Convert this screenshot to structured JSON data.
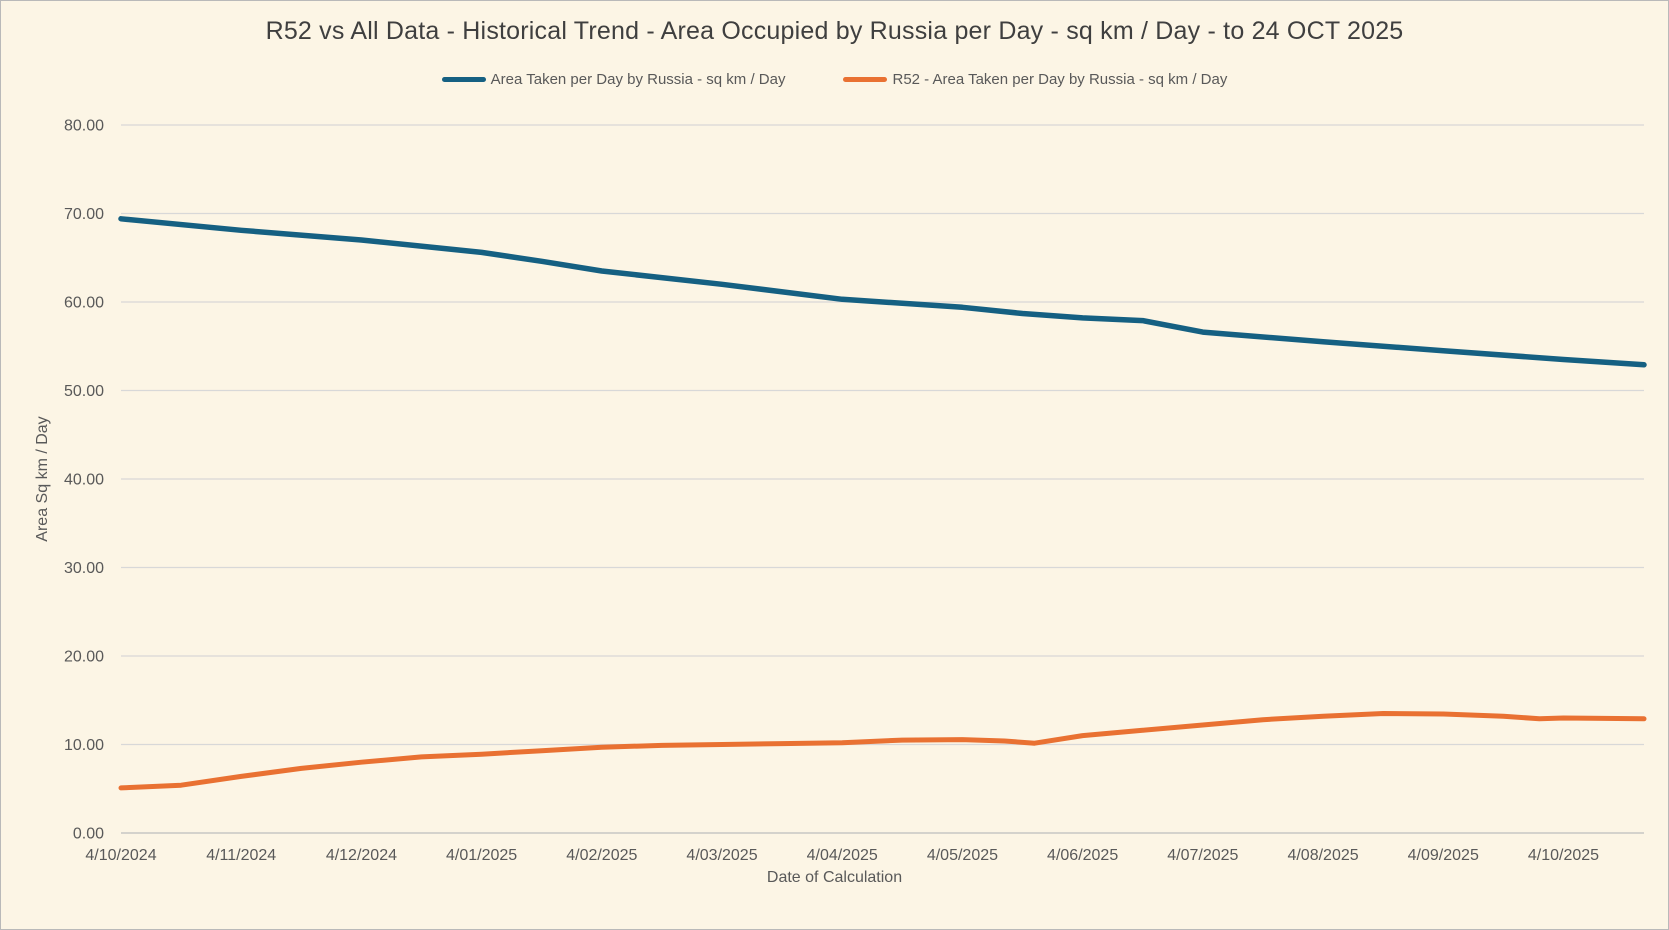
{
  "chart_data": {
    "type": "line",
    "title": "R52 vs All Data - Historical Trend - Area Occupied by Russia per Day - sq km / Day - to 24 OCT 2025",
    "xlabel": "Date of Calculation",
    "ylabel": "Area Sq km / Day",
    "ylim": [
      0,
      80
    ],
    "ytick_step": 10,
    "ytick_decimals": 2,
    "grid": true,
    "legend_position": "top",
    "x_tick_labels": [
      "4/10/2024",
      "4/11/2024",
      "4/12/2024",
      "4/01/2025",
      "4/02/2025",
      "4/03/2025",
      "4/04/2025",
      "4/05/2025",
      "4/06/2025",
      "4/07/2025",
      "4/08/2025",
      "4/09/2025",
      "4/10/2025"
    ],
    "x_months_total": 12.67,
    "x_end_date": "24/10/2025",
    "colors": {
      "background": "#FCF5E5",
      "grid": "#D8D8D8",
      "axis_line": "#BDBDBD",
      "axis_text": "#595959",
      "title_text": "#3F3F3F",
      "border": "#B9B9B9",
      "series_all_data": "#156082",
      "series_r52": "#E97132"
    },
    "series": [
      {
        "name": "Area Taken per Day by Russia - sq km / Day",
        "color": "#156082",
        "stroke_width": 5.5,
        "points": [
          {
            "date": "4/10/2024",
            "x_month": 0,
            "value": 69.4
          },
          {
            "date": "4/11/2024",
            "x_month": 1,
            "value": 68.1
          },
          {
            "date": "4/12/2024",
            "x_month": 2,
            "value": 67.0
          },
          {
            "date": "4/01/2025",
            "x_month": 3,
            "value": 65.6
          },
          {
            "date": "19/01/2025",
            "x_month": 3.5,
            "value": 64.6
          },
          {
            "date": "4/02/2025",
            "x_month": 4,
            "value": 63.5
          },
          {
            "date": "4/03/2025",
            "x_month": 5,
            "value": 62.0
          },
          {
            "date": "4/04/2025",
            "x_month": 6,
            "value": 60.3
          },
          {
            "date": "4/05/2025",
            "x_month": 7,
            "value": 59.4
          },
          {
            "date": "19/05/2025",
            "x_month": 7.5,
            "value": 58.7
          },
          {
            "date": "4/06/2025",
            "x_month": 8,
            "value": 58.2
          },
          {
            "date": "19/06/2025",
            "x_month": 8.5,
            "value": 57.9
          },
          {
            "date": "4/07/2025",
            "x_month": 9,
            "value": 56.6
          },
          {
            "date": "4/08/2025",
            "x_month": 10,
            "value": 55.5
          },
          {
            "date": "4/09/2025",
            "x_month": 11,
            "value": 54.5
          },
          {
            "date": "4/10/2025",
            "x_month": 12,
            "value": 53.5
          },
          {
            "date": "24/10/2025",
            "x_month": 12.67,
            "value": 52.9
          }
        ]
      },
      {
        "name": "R52 - Area Taken per Day by Russia - sq km / Day",
        "color": "#E97132",
        "stroke_width": 5,
        "points": [
          {
            "date": "4/10/2024",
            "x_month": 0,
            "value": 5.1
          },
          {
            "date": "19/10/2024",
            "x_month": 0.5,
            "value": 5.4
          },
          {
            "date": "4/11/2024",
            "x_month": 1,
            "value": 6.4
          },
          {
            "date": "19/11/2024",
            "x_month": 1.5,
            "value": 7.3
          },
          {
            "date": "4/12/2024",
            "x_month": 2,
            "value": 8.0
          },
          {
            "date": "19/12/2024",
            "x_month": 2.5,
            "value": 8.6
          },
          {
            "date": "4/01/2025",
            "x_month": 3,
            "value": 8.9
          },
          {
            "date": "19/01/2025",
            "x_month": 3.5,
            "value": 9.3
          },
          {
            "date": "4/02/2025",
            "x_month": 4,
            "value": 9.7
          },
          {
            "date": "19/02/2025",
            "x_month": 4.5,
            "value": 9.9
          },
          {
            "date": "4/03/2025",
            "x_month": 5,
            "value": 10.0
          },
          {
            "date": "19/03/2025",
            "x_month": 5.5,
            "value": 10.1
          },
          {
            "date": "4/04/2025",
            "x_month": 6,
            "value": 10.2
          },
          {
            "date": "19/04/2025",
            "x_month": 6.5,
            "value": 10.5
          },
          {
            "date": "4/05/2025",
            "x_month": 7,
            "value": 10.55
          },
          {
            "date": "15/05/2025",
            "x_month": 7.35,
            "value": 10.4
          },
          {
            "date": "22/05/2025",
            "x_month": 7.6,
            "value": 10.15
          },
          {
            "date": "4/06/2025",
            "x_month": 8,
            "value": 11.0
          },
          {
            "date": "19/06/2025",
            "x_month": 8.5,
            "value": 11.6
          },
          {
            "date": "4/07/2025",
            "x_month": 9,
            "value": 12.2
          },
          {
            "date": "19/07/2025",
            "x_month": 9.5,
            "value": 12.8
          },
          {
            "date": "4/08/2025",
            "x_month": 10,
            "value": 13.2
          },
          {
            "date": "19/08/2025",
            "x_month": 10.5,
            "value": 13.5
          },
          {
            "date": "4/09/2025",
            "x_month": 11,
            "value": 13.45
          },
          {
            "date": "19/09/2025",
            "x_month": 11.5,
            "value": 13.2
          },
          {
            "date": "28/09/2025",
            "x_month": 11.8,
            "value": 12.9
          },
          {
            "date": "4/10/2025",
            "x_month": 12,
            "value": 13.0
          },
          {
            "date": "24/10/2025",
            "x_month": 12.67,
            "value": 12.9
          }
        ]
      }
    ]
  }
}
